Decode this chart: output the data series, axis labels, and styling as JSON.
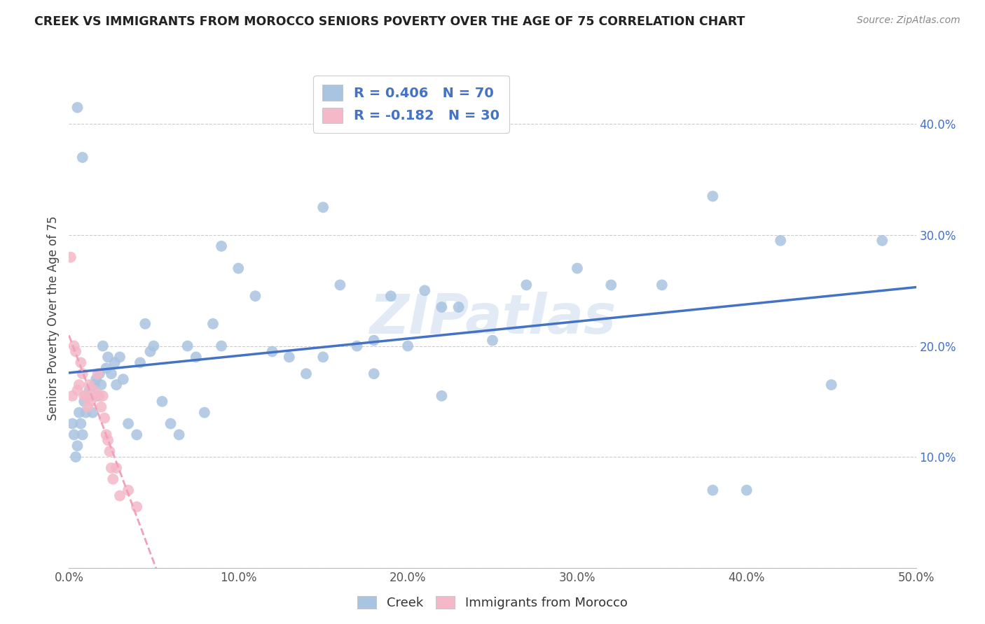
{
  "title": "CREEK VS IMMIGRANTS FROM MOROCCO SENIORS POVERTY OVER THE AGE OF 75 CORRELATION CHART",
  "source": "Source: ZipAtlas.com",
  "ylabel": "Seniors Poverty Over the Age of 75",
  "xlim": [
    0,
    50
  ],
  "ylim": [
    0,
    45
  ],
  "xticks": [
    0,
    10,
    20,
    30,
    40,
    50
  ],
  "xticklabels": [
    "0.0%",
    "10.0%",
    "20.0%",
    "30.0%",
    "40.0%",
    "50.0%"
  ],
  "yticks": [
    0,
    10,
    20,
    30,
    40
  ],
  "yticklabels": [
    "",
    "10.0%",
    "20.0%",
    "30.0%",
    "40.0%"
  ],
  "creek_color": "#a8c4e0",
  "morocco_color": "#f4b8c8",
  "creek_line_color": "#4472c4",
  "morocco_line_color": "#f0a0b8",
  "creek_R": 0.406,
  "creek_N": 70,
  "morocco_R": -0.182,
  "morocco_N": 30,
  "legend_text_color": "#4472c4",
  "watermark": "ZIPatlas",
  "creek_x": [
    0.2,
    0.3,
    0.4,
    0.5,
    0.6,
    0.7,
    0.8,
    0.9,
    1.0,
    1.2,
    1.3,
    1.4,
    1.5,
    1.6,
    1.7,
    1.8,
    1.9,
    2.0,
    2.2,
    2.3,
    2.5,
    2.7,
    2.8,
    3.0,
    3.2,
    3.5,
    4.0,
    4.2,
    4.5,
    4.8,
    5.0,
    5.5,
    6.0,
    6.5,
    7.0,
    7.5,
    8.0,
    8.5,
    9.0,
    10.0,
    11.0,
    12.0,
    13.0,
    14.0,
    15.0,
    16.0,
    17.0,
    18.0,
    19.0,
    20.0,
    21.0,
    22.0,
    23.0,
    25.0,
    27.0,
    30.0,
    32.0,
    35.0,
    38.0,
    40.0,
    42.0,
    45.0,
    48.0,
    18.0,
    22.0,
    38.0,
    0.5,
    0.8,
    15.0,
    9.0
  ],
  "creek_y": [
    13.0,
    12.0,
    10.0,
    11.0,
    14.0,
    13.0,
    12.0,
    15.0,
    14.0,
    16.0,
    15.5,
    14.0,
    16.5,
    17.0,
    15.5,
    17.5,
    16.5,
    20.0,
    18.0,
    19.0,
    17.5,
    18.5,
    16.5,
    19.0,
    17.0,
    13.0,
    12.0,
    18.5,
    22.0,
    19.5,
    20.0,
    15.0,
    13.0,
    12.0,
    20.0,
    19.0,
    14.0,
    22.0,
    20.0,
    27.0,
    24.5,
    19.5,
    19.0,
    17.5,
    19.0,
    25.5,
    20.0,
    17.5,
    24.5,
    20.0,
    25.0,
    23.5,
    23.5,
    20.5,
    25.5,
    27.0,
    25.5,
    25.5,
    7.0,
    7.0,
    29.5,
    16.5,
    29.5,
    20.5,
    15.5,
    33.5,
    41.5,
    37.0,
    32.5,
    29.0
  ],
  "morocco_x": [
    0.1,
    0.2,
    0.3,
    0.4,
    0.5,
    0.6,
    0.7,
    0.8,
    0.9,
    1.0,
    1.1,
    1.2,
    1.3,
    1.4,
    1.5,
    1.6,
    1.7,
    1.8,
    1.9,
    2.0,
    2.1,
    2.2,
    2.3,
    2.4,
    2.5,
    2.6,
    2.8,
    3.0,
    3.5,
    4.0
  ],
  "morocco_y": [
    28.0,
    15.5,
    20.0,
    19.5,
    16.0,
    16.5,
    18.5,
    17.5,
    15.5,
    15.5,
    14.5,
    16.5,
    15.0,
    15.5,
    16.0,
    15.5,
    17.5,
    15.5,
    14.5,
    15.5,
    13.5,
    12.0,
    11.5,
    10.5,
    9.0,
    8.0,
    9.0,
    6.5,
    7.0,
    5.5
  ]
}
